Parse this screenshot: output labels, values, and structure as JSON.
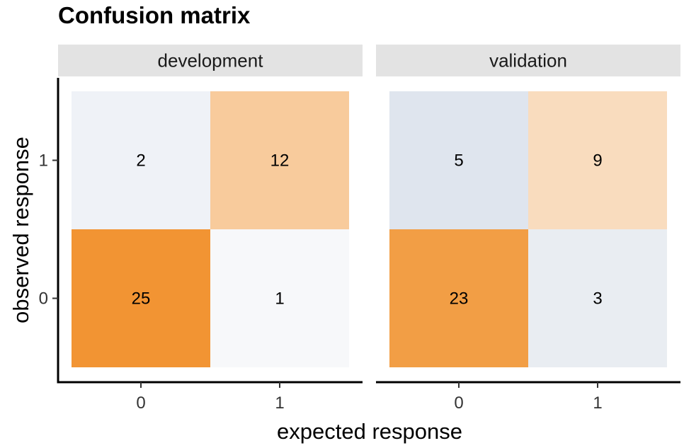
{
  "chart_data": {
    "type": "heatmap",
    "title": "Confusion matrix",
    "xlabel": "expected response",
    "ylabel": "observed response",
    "x_categories": [
      "0",
      "1"
    ],
    "y_categories": [
      "0",
      "1"
    ],
    "low_color": "#f7f8fa",
    "high_color": "#f29433",
    "panels": [
      {
        "name": "development",
        "cells": [
          {
            "x": "0",
            "y": "1",
            "value": 2,
            "fill": "#eff2f7"
          },
          {
            "x": "1",
            "y": "1",
            "value": 12,
            "fill": "#f8cb9c"
          },
          {
            "x": "0",
            "y": "0",
            "value": 25,
            "fill": "#f29433"
          },
          {
            "x": "1",
            "y": "0",
            "value": 1,
            "fill": "#f7f8fa"
          }
        ]
      },
      {
        "name": "validation",
        "cells": [
          {
            "x": "0",
            "y": "1",
            "value": 5,
            "fill": "#dfe5ee"
          },
          {
            "x": "1",
            "y": "1",
            "value": 9,
            "fill": "#f9dcbe"
          },
          {
            "x": "0",
            "y": "0",
            "value": 23,
            "fill": "#f29e45"
          },
          {
            "x": "1",
            "y": "0",
            "value": 3,
            "fill": "#e9edf2"
          }
        ]
      }
    ]
  }
}
